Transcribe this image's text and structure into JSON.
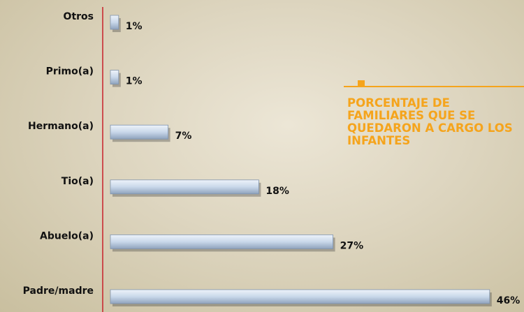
{
  "chart_data": {
    "type": "bar",
    "orientation": "horizontal",
    "title": "PORCENTAJE DE FAMILIARES QUE SE QUEDARON A CARGO LOS INFANTES",
    "categories": [
      "Otros",
      "Primo(a)",
      "Hermano(a)",
      "Tio(a)",
      "Abuelo(a)",
      "Padre/madre"
    ],
    "values": [
      1,
      1,
      7,
      18,
      27,
      46
    ],
    "value_labels": [
      "1%",
      "1%",
      "7%",
      "18%",
      "27%",
      "46%"
    ],
    "color": "#c9d8ea"
  }
}
